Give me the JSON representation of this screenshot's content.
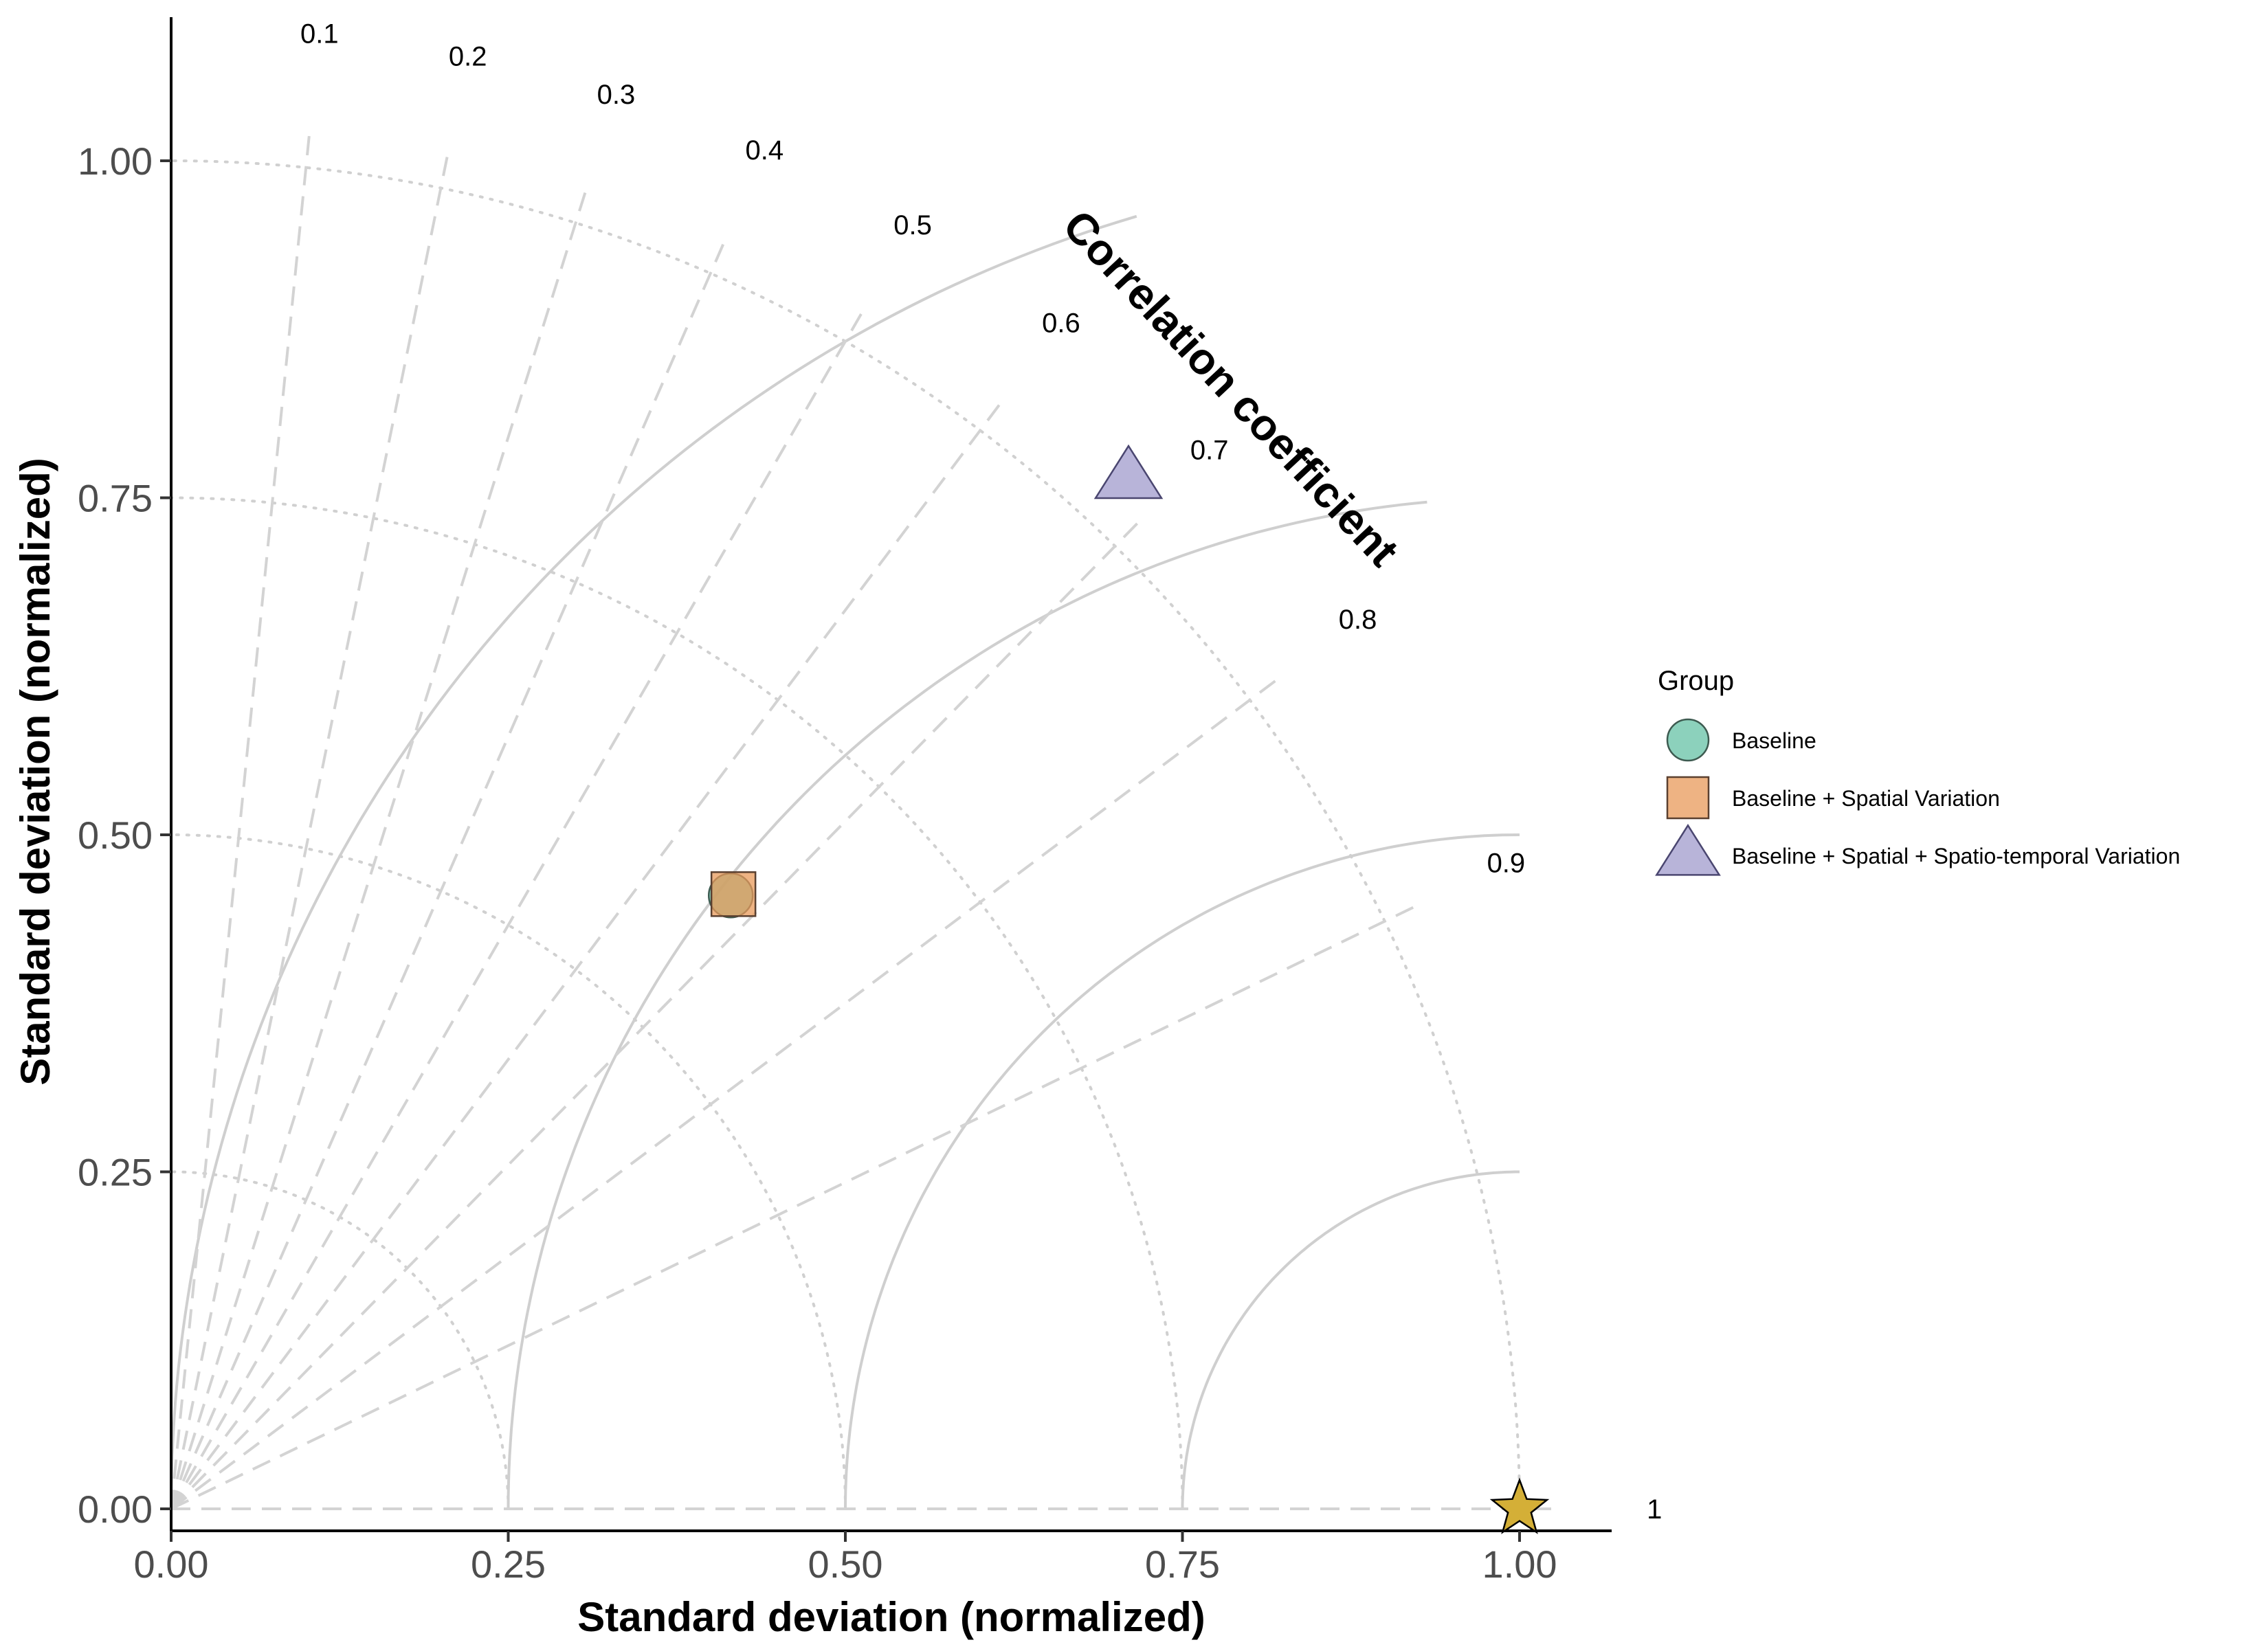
{
  "chart_data": {
    "type": "scatter",
    "subtype": "taylor-diagram",
    "xlabel": "Standard deviation (normalized)",
    "ylabel": "Standard deviation (normalized)",
    "xlim": [
      0,
      1.07
    ],
    "ylim": [
      -0.015,
      1.065
    ],
    "x_ticks": [
      0,
      0.25,
      0.5,
      0.75,
      1.0
    ],
    "x_tick_labels": [
      "0.00",
      "0.25",
      "0.50",
      "0.75",
      "1.00"
    ],
    "y_ticks": [
      0,
      0.25,
      0.5,
      0.75,
      1.0
    ],
    "y_tick_labels": [
      "0.00",
      "0.25",
      "0.50",
      "0.75",
      "1.00"
    ],
    "correlation_title": "Correlation coefficient",
    "correlation_values": [
      0.1,
      0.2,
      0.3,
      0.4,
      0.5,
      0.6,
      0.7,
      0.8,
      0.9,
      1
    ],
    "correlation_labels": [
      "0.1",
      "0.2",
      "0.3",
      "0.4",
      "0.5",
      "0.6",
      "0.7",
      "0.8",
      "0.9",
      "1"
    ],
    "sd_arcs": [
      0.25,
      0.5,
      0.75,
      1.0
    ],
    "rmsd_arcs": [
      0.25,
      0.5,
      0.75,
      1.0
    ],
    "reference": {
      "x": 1.0,
      "y": 0.0,
      "color": "#D4AF37",
      "marker": "star"
    },
    "legend": {
      "title": "Group",
      "position": "right"
    },
    "series": [
      {
        "name": "Baseline",
        "x": 0.415,
        "y": 0.455,
        "color": "#66C2A5",
        "marker": "circle"
      },
      {
        "name": "Baseline + Spatial Variation",
        "x": 0.417,
        "y": 0.456,
        "color": "#E89A5A",
        "marker": "square"
      },
      {
        "name": "Baseline + Spatial + Spatio-temporal Variation",
        "x": 0.71,
        "y": 0.765,
        "color": "#A6A1CF",
        "marker": "triangle"
      }
    ],
    "grid": false
  }
}
